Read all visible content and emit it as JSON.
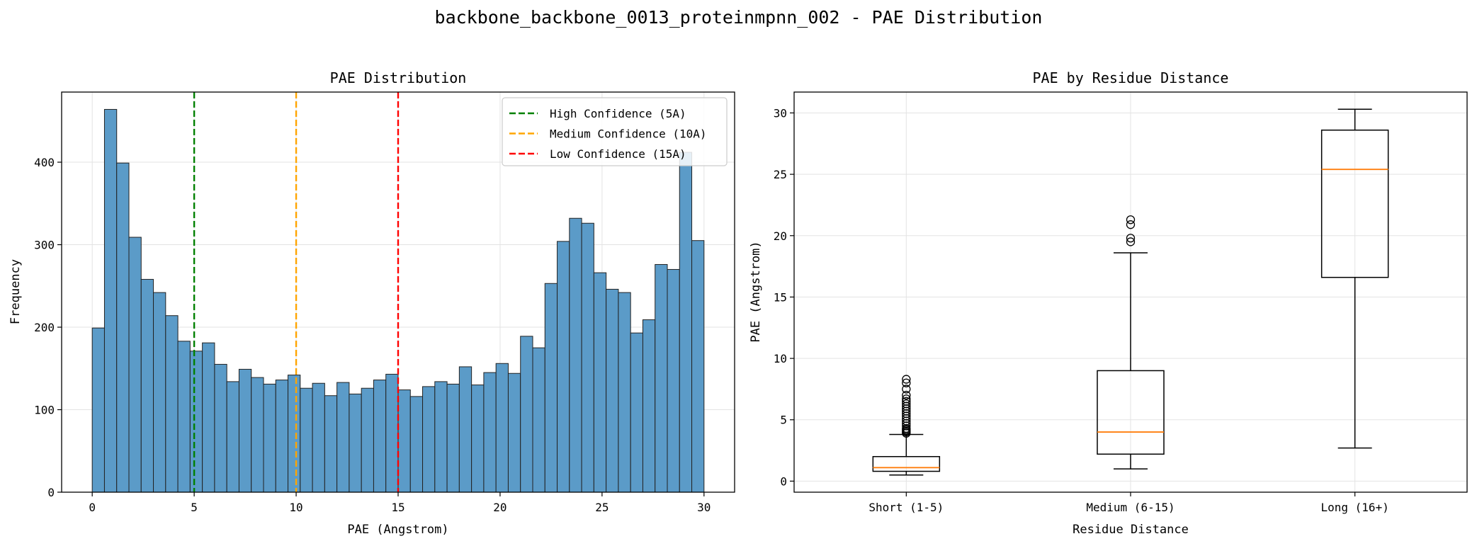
{
  "figure": {
    "title": "backbone_backbone_0013_proteinmpnn_002 - PAE Distribution"
  },
  "chart_data": [
    {
      "type": "bar",
      "subtype": "histogram",
      "title": "PAE Distribution",
      "xlabel": "PAE (Angstrom)",
      "ylabel": "Frequency",
      "xlim": [
        -1.5,
        31.5
      ],
      "ylim": [
        0,
        485
      ],
      "xticks": [
        0,
        5,
        10,
        15,
        20,
        25,
        30
      ],
      "yticks": [
        0,
        100,
        200,
        300,
        400
      ],
      "grid": true,
      "bin_start": 0,
      "bin_width": 0.6,
      "counts": [
        199,
        464,
        399,
        309,
        258,
        242,
        214,
        183,
        171,
        181,
        155,
        134,
        149,
        139,
        131,
        136,
        142,
        126,
        132,
        117,
        133,
        119,
        126,
        136,
        143,
        124,
        116,
        128,
        134,
        131,
        152,
        130,
        145,
        156,
        144,
        189,
        175,
        253,
        304,
        332,
        326,
        266,
        246,
        242,
        193,
        209,
        276,
        270,
        412,
        305
      ],
      "bar_color": "#5b9bc8",
      "reference_lines": [
        {
          "x": 5,
          "label": "High Confidence (5A)",
          "color": "#008000"
        },
        {
          "x": 10,
          "label": "Medium Confidence (10A)",
          "color": "#ffa500"
        },
        {
          "x": 15,
          "label": "Low Confidence (15A)",
          "color": "#ff0000"
        }
      ],
      "legend_position": "top-right"
    },
    {
      "type": "boxplot",
      "title": "PAE by Residue Distance",
      "xlabel": "Residue Distance",
      "ylabel": "PAE (Angstrom)",
      "ylim": [
        -0.9,
        31.7
      ],
      "yticks": [
        0,
        5,
        10,
        15,
        20,
        25,
        30
      ],
      "grid": true,
      "median_color": "#ff7f0e",
      "categories": [
        "Short (1-5)",
        "Medium (6-15)",
        "Long (16+)"
      ],
      "boxes": [
        {
          "whisker_low": 0.5,
          "q1": 0.8,
          "median": 1.1,
          "q3": 2.0,
          "whisker_high": 3.8,
          "outliers": [
            3.9,
            4.0,
            4.1,
            4.2,
            4.3,
            4.5,
            4.7,
            4.9,
            5.1,
            5.3,
            5.5,
            5.7,
            5.9,
            6.1,
            6.3,
            6.5,
            6.7,
            7.0,
            7.5,
            8.0,
            8.3
          ]
        },
        {
          "whisker_low": 1.0,
          "q1": 2.2,
          "median": 4.0,
          "q3": 9.0,
          "whisker_high": 18.6,
          "outliers": [
            19.5,
            19.8,
            20.9,
            21.3
          ]
        },
        {
          "whisker_low": 2.7,
          "q1": 16.6,
          "median": 25.4,
          "q3": 28.6,
          "whisker_high": 30.3,
          "outliers": []
        }
      ]
    }
  ]
}
